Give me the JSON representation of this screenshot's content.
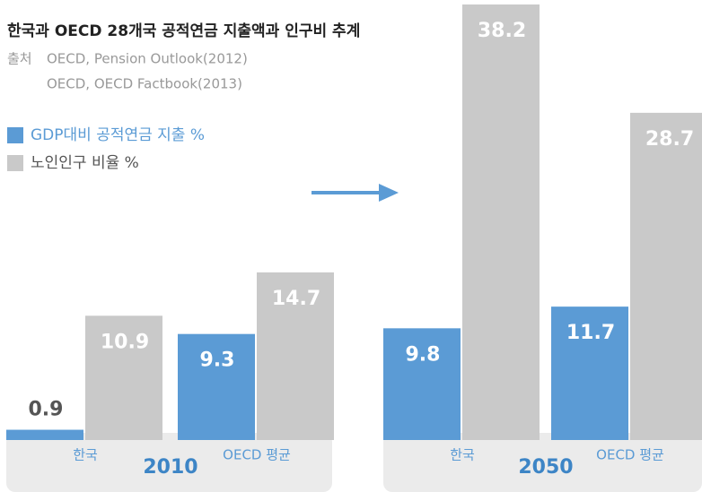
{
  "chart_data": {
    "type": "bar",
    "title": "한국과 OECD 28개국 공적연금 지출액과 인구비 추계",
    "source_label": "출처",
    "sources": [
      "OECD, Pension Outlook(2012)",
      "OECD, OECD Factbook(2013)"
    ],
    "groups": [
      "2010",
      "2050"
    ],
    "categories": [
      "한국",
      "OECD 평균",
      "한국",
      "OECD 평균"
    ],
    "series": [
      {
        "name": "GDP대비 공적연금 지출 %",
        "color": "#5b9bd5",
        "values": [
          0.9,
          9.3,
          9.8,
          11.7
        ]
      },
      {
        "name": "노인인구 비율 %",
        "color": "#c9c9c9",
        "values": [
          10.9,
          14.7,
          38.2,
          28.7
        ]
      }
    ]
  }
}
